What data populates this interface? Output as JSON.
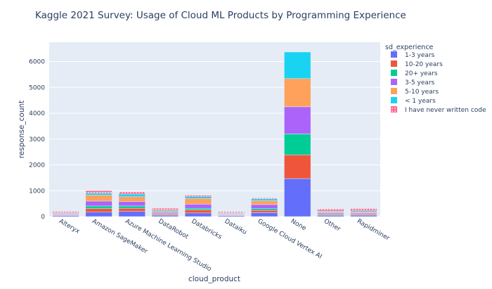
{
  "chart_data": {
    "type": "bar",
    "stacked": true,
    "title": "Kaggle 2021 Survey: Usage of Cloud ML Products by Programming Experience",
    "xlabel": "cloud_product",
    "ylabel": "response_count",
    "ylim": [
      0,
      6750
    ],
    "yticks": [
      0,
      1000,
      2000,
      3000,
      4000,
      5000,
      6000
    ],
    "grid": true,
    "legend_position": "right",
    "legend_title": "sd_experience",
    "categories": [
      "Alteryx",
      "Amazon SageMaker",
      "Azure Machine Learning Studio",
      "DataRobot",
      "Databricks",
      "Dataiku",
      "Google Cloud Vertex AI",
      "None",
      "Other",
      "Rapidminer"
    ],
    "series": [
      {
        "name": "1-3 years",
        "color": "#636efa",
        "pattern": "none",
        "values": [
          40,
          170,
          200,
          50,
          140,
          35,
          150,
          1470,
          50,
          50
        ]
      },
      {
        "name": "10-20 years",
        "color": "#ef553b",
        "pattern": "none",
        "values": [
          20,
          140,
          120,
          35,
          120,
          20,
          90,
          920,
          30,
          35
        ]
      },
      {
        "name": "20+ years",
        "color": "#00cc96",
        "pattern": "none",
        "values": [
          15,
          100,
          90,
          25,
          60,
          15,
          65,
          810,
          30,
          25
        ]
      },
      {
        "name": "3-5 years",
        "color": "#ab63fa",
        "pattern": "none",
        "values": [
          30,
          190,
          170,
          45,
          160,
          25,
          160,
          1050,
          40,
          40
        ]
      },
      {
        "name": "5-10 years",
        "color": "#ffa15a",
        "pattern": "none",
        "values": [
          25,
          230,
          190,
          55,
          220,
          25,
          150,
          1090,
          40,
          40
        ]
      },
      {
        "name": "< 1 years",
        "color": "#19d3f3",
        "pattern": "none",
        "values": [
          20,
          80,
          100,
          40,
          70,
          20,
          70,
          1030,
          25,
          35
        ]
      },
      {
        "name": "I have never written code",
        "color": "#ff6692",
        "pattern": "dots",
        "values": [
          45,
          90,
          90,
          70,
          60,
          50,
          40,
          0,
          80,
          85
        ]
      }
    ]
  }
}
